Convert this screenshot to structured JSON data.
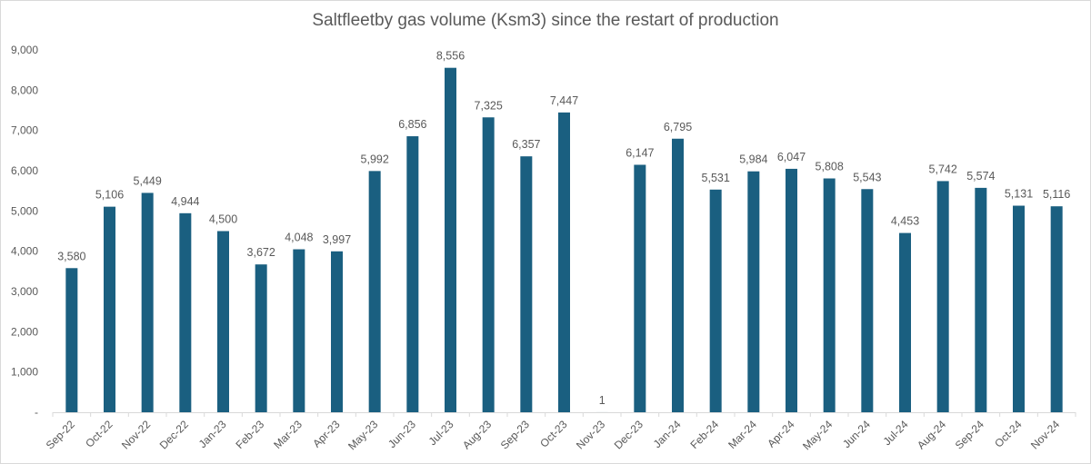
{
  "chart_data": {
    "type": "bar",
    "title": "Saltfleetby gas volume (Ksm3) since the restart of production",
    "xlabel": "",
    "ylabel": "",
    "ylim": [
      0,
      9000
    ],
    "yticks": [
      0,
      1000,
      2000,
      3000,
      4000,
      5000,
      6000,
      7000,
      8000,
      9000
    ],
    "ytick_labels": [
      "-",
      "1,000",
      "2,000",
      "3,000",
      "4,000",
      "5,000",
      "6,000",
      "7,000",
      "8,000",
      "9,000"
    ],
    "grid": false,
    "legend": "none",
    "bar_color": "#1a5f80",
    "categories": [
      "Sep-22",
      "Oct-22",
      "Nov-22",
      "Dec-22",
      "Jan-23",
      "Feb-23",
      "Mar-23",
      "Apr-23",
      "May-23",
      "Jun-23",
      "Jul-23",
      "Aug-23",
      "Sep-23",
      "Oct-23",
      "Nov-23",
      "Dec-23",
      "Jan-24",
      "Feb-24",
      "Mar-24",
      "Apr-24",
      "May-24",
      "Jun-24",
      "Jul-24",
      "Aug-24",
      "Sep-24",
      "Oct-24",
      "Nov-24"
    ],
    "values": [
      3580,
      5106,
      5449,
      4944,
      4500,
      3672,
      4048,
      3997,
      5992,
      6856,
      8556,
      7325,
      6357,
      7447,
      1,
      6147,
      6795,
      5531,
      5984,
      6047,
      5808,
      5543,
      4453,
      5742,
      5574,
      5131,
      5116
    ],
    "data_labels": [
      "3,580",
      "5,106",
      "5,449",
      "4,944",
      "4,500",
      "3,672",
      "4,048",
      "3,997",
      "5,992",
      "6,856",
      "8,556",
      "7,325",
      "6,357",
      "7,447",
      "1",
      "6,147",
      "6,795",
      "5,531",
      "5,984",
      "6,047",
      "5,808",
      "5,543",
      "4,453",
      "5,742",
      "5,574",
      "5,131",
      "5,116"
    ]
  }
}
